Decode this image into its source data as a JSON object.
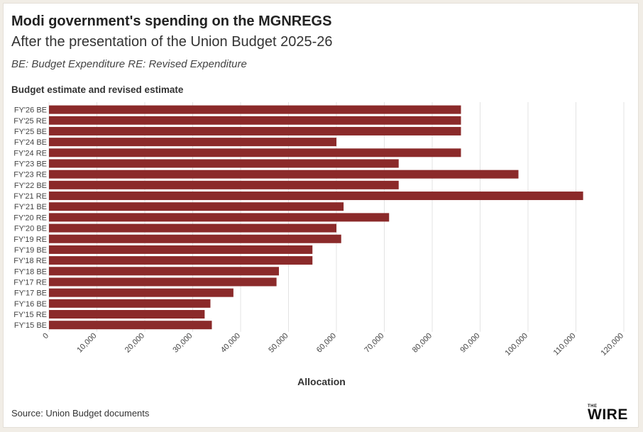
{
  "header": {
    "title": "Modi government's spending on the MGNREGS",
    "subtitle": "After the presentation of the Union Budget 2025-26",
    "note": "BE: Budget Expenditure RE: Revised Expenditure",
    "section_label": "Budget estimate and revised estimate"
  },
  "footer": {
    "source": "Source: Union Budget documents",
    "logo_small": "THE",
    "logo_text": "WIRE"
  },
  "colors": {
    "bar": "#8b2a2a",
    "grid": "#e3e3e3",
    "text": "#333333",
    "background": "#f1ede6"
  },
  "chart_data": {
    "type": "bar",
    "orientation": "horizontal",
    "title": "Budget estimate and revised estimate",
    "xlabel": "Allocation",
    "ylabel": "",
    "xlim": [
      0,
      120000
    ],
    "xticks": [
      0,
      10000,
      20000,
      30000,
      40000,
      50000,
      60000,
      70000,
      80000,
      90000,
      100000,
      110000,
      120000
    ],
    "xtick_labels": [
      "0",
      "10,000",
      "20,000",
      "30,000",
      "40,000",
      "50,000",
      "60,000",
      "70,000",
      "80,000",
      "90,000",
      "100,000",
      "110,000",
      "120,000"
    ],
    "grid": true,
    "categories": [
      "FY'26 BE",
      "FY'25 RE",
      "FY'25 BE",
      "FY'24 BE",
      "FY'24 RE",
      "FY'23 BE",
      "FY'23 RE",
      "FY'22 BE",
      "FY'21 RE",
      "FY'21 BE",
      "FY'20 RE",
      "FY'20 BE",
      "FY'19 RE",
      "FY'19 BE",
      "FY'18 RE",
      "FY'18 BE",
      "FY'17 RE",
      "FY'17 BE",
      "FY'16 BE",
      "FY'15 RE",
      "FY'15 BE"
    ],
    "values": [
      86000,
      86000,
      86000,
      60000,
      86000,
      73000,
      98000,
      73000,
      111500,
      61500,
      71000,
      60000,
      61000,
      55000,
      55000,
      48000,
      47500,
      38500,
      33700,
      32500,
      34000
    ]
  }
}
